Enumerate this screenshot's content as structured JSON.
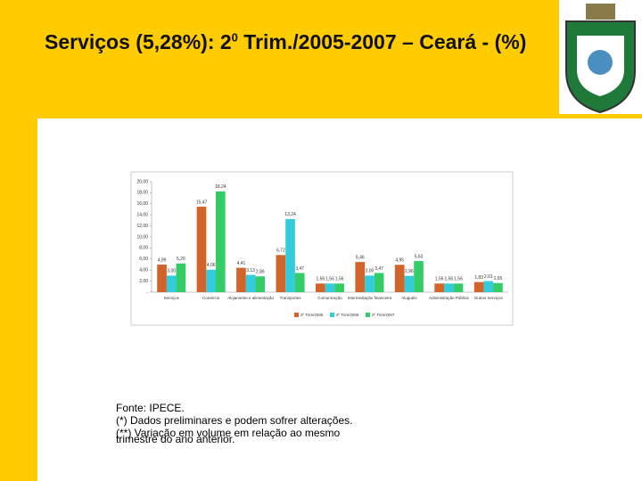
{
  "header": {
    "title_main": "Serviços (5,28%): 2",
    "title_sup": "0",
    "title_rest": " Trim./2005-2007 – Ceará - (%)"
  },
  "chart_data": {
    "type": "bar",
    "categories": [
      "Serviços",
      "Comércio",
      "Alojamento e alimentação",
      "Transportes",
      "Comunicação",
      "Intermediação financeira",
      "Aluguéis",
      "Administração Pública",
      "Outros Serviços"
    ],
    "series": [
      {
        "name": "2º Trim/2005",
        "color": "#D2642A",
        "values": [
          4.99,
          15.47,
          4.41,
          6.72,
          1.56,
          5.46,
          4.95,
          1.56,
          1.83
        ],
        "value_labels": [
          "4,99",
          "15,47",
          "4,41",
          "6,72",
          "1,56",
          "5,46",
          "4,95",
          "1,56",
          "1,83"
        ]
      },
      {
        "name": "2º Trim/2006",
        "color": "#33CCDD",
        "values": [
          3.0,
          4.06,
          3.13,
          13.24,
          1.56,
          3.0,
          2.96,
          1.56,
          2.01
        ],
        "value_labels": [
          "3,00",
          "4,06",
          "3,13",
          "13,24",
          "1,56",
          "3,00",
          "2,96",
          "1,56",
          "2,01"
        ]
      },
      {
        "name": "2º Trim/2007",
        "color": "#33CC66",
        "values": [
          5.2,
          18.24,
          2.86,
          3.47,
          1.56,
          3.47,
          5.63,
          1.56,
          1.65
        ],
        "value_labels": [
          "5,20",
          "18,24",
          "2,86",
          "3,47",
          "1,56",
          "3,47",
          "5,63",
          "1,56",
          "1,65"
        ]
      }
    ],
    "ylim": [
      0,
      20
    ],
    "yticks": [
      {
        "value": 0,
        "label": "-"
      },
      {
        "value": 2,
        "label": "2,00"
      },
      {
        "value": 4,
        "label": "4,00"
      },
      {
        "value": 6,
        "label": "6,00"
      },
      {
        "value": 8,
        "label": "8,00"
      },
      {
        "value": 10,
        "label": "10,00"
      },
      {
        "value": 12,
        "label": "12,00"
      },
      {
        "value": 14,
        "label": "14,00"
      },
      {
        "value": 16,
        "label": "16,00"
      },
      {
        "value": 18,
        "label": "18,00"
      },
      {
        "value": 20,
        "label": "20,00"
      }
    ]
  },
  "notes": [
    "Fonte: IPECE.",
    "(*) Dados preliminares e podem sofrer alterações.",
    "(**) Variação em volume em relação ao mesmo",
    "trimestre do ano anterior."
  ]
}
